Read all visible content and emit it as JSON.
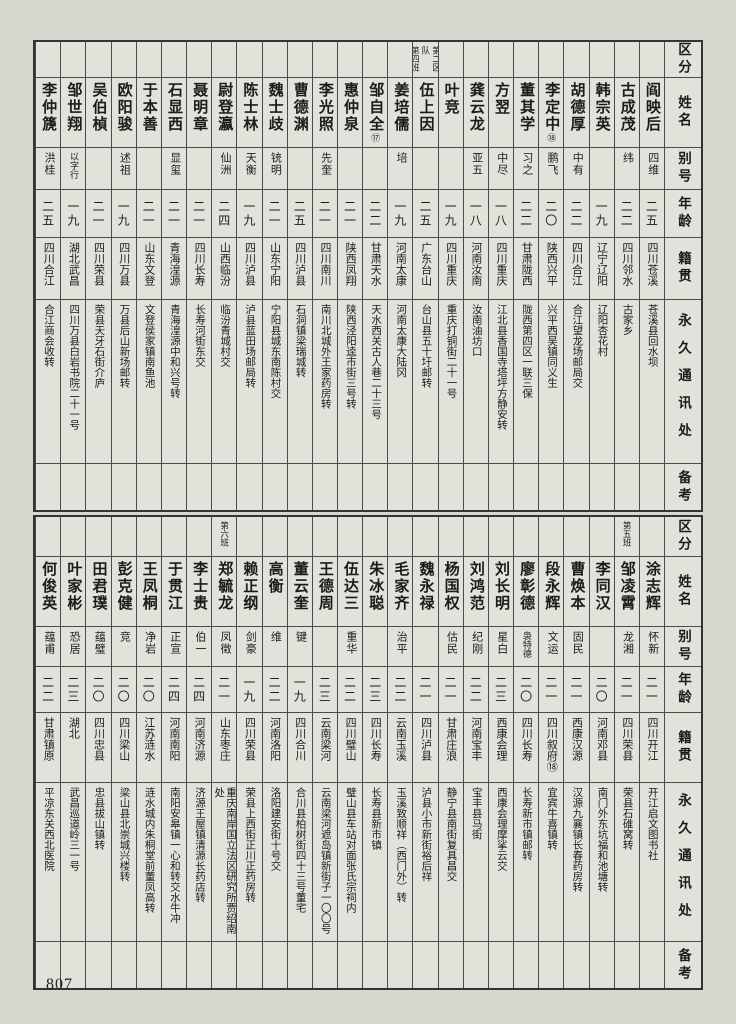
{
  "page": {
    "number": "807"
  },
  "colors": {
    "paper": "#d6d8cf",
    "ink": "#1b1b1b",
    "border": "#4a4a4a"
  },
  "headers": {
    "labels": [
      "区分",
      "姓名",
      "别号",
      "年龄",
      "籍贯",
      "永久通讯处",
      "备考"
    ]
  },
  "tables": [
    {
      "id": "top",
      "people": [
        {
          "name": "阎映后",
          "alias": "四维",
          "age": "二五",
          "native": "四川苍溪",
          "address": "苍溪县回水坝",
          "marker": "",
          "squad": ""
        },
        {
          "name": "古成茂",
          "alias": "纬",
          "age": "二二",
          "native": "四川邻水",
          "address": "古家乡",
          "marker": "",
          "squad": ""
        },
        {
          "name": "韩宗英",
          "alias": "",
          "age": "一九",
          "native": "辽宁辽阳",
          "address": "辽阳杏花村",
          "marker": "",
          "squad": ""
        },
        {
          "name": "胡德厚",
          "alias": "中有",
          "age": "二二",
          "native": "四川合江",
          "address": "合江望龙场邮局交",
          "marker": "",
          "squad": ""
        },
        {
          "name": "李定中",
          "alias": "鹏飞",
          "age": "二〇",
          "native": "陕西兴平",
          "address": "兴平西吴镇同义生",
          "marker": "⑱",
          "squad": ""
        },
        {
          "name": "董其学",
          "alias": "习之",
          "age": "二二",
          "native": "甘肃陇西",
          "address": "陇西第四区一联三保",
          "marker": "",
          "squad": ""
        },
        {
          "name": "方翌",
          "alias": "中尽",
          "age": "一八",
          "native": "四川重庆",
          "address": "江北县香国寺塔坪方静安转",
          "marker": "",
          "squad": ""
        },
        {
          "name": "龚云龙",
          "alias": "亚五",
          "age": "一八",
          "native": "河南汝南",
          "address": "汝南油坊口",
          "marker": "",
          "squad": ""
        },
        {
          "name": "叶竞",
          "alias": "",
          "age": "一九",
          "native": "四川重庆",
          "address": "重庆打铜街二十一号",
          "marker": "",
          "squad": ""
        },
        {
          "name": "伍上因",
          "alias": "",
          "age": "二五",
          "native": "广东台山",
          "address": "台山县五十圩邮转",
          "marker": "",
          "squad": "第二区队\n第四班"
        },
        {
          "name": "姜培儒",
          "alias": "培",
          "age": "一九",
          "native": "河南太康",
          "address": "河南太康大陆冈",
          "marker": "",
          "squad": ""
        },
        {
          "name": "邹自全",
          "alias": "",
          "age": "二二",
          "native": "甘肃天水",
          "address": "天水西关古人巷二十三号",
          "marker": "⑰",
          "squad": ""
        },
        {
          "name": "惠仲泉",
          "alias": "",
          "age": "二一",
          "native": "陕西凤翔",
          "address": "陕西泾阳逵市街三号转",
          "marker": "",
          "squad": ""
        },
        {
          "name": "李光照",
          "alias": "先奎",
          "age": "二一",
          "native": "四川南川",
          "address": "南川北城外王家药房转",
          "marker": "",
          "squad": ""
        },
        {
          "name": "曹德渊",
          "alias": "",
          "age": "二五",
          "native": "四川泸县",
          "address": "石洞镇梁瑞城转",
          "marker": "",
          "squad": ""
        },
        {
          "name": "魏士歧",
          "alias": "铳明",
          "age": "二一",
          "native": "山东宁阳",
          "address": "宁阳县城东南陈村交",
          "marker": "",
          "squad": ""
        },
        {
          "name": "陈士林",
          "alias": "天衡",
          "age": "一九",
          "native": "四川泸县",
          "address": "泸县蓝田场邮局转",
          "marker": "",
          "squad": ""
        },
        {
          "name": "尉登瀛",
          "alias": "仙洲",
          "age": "二四",
          "native": "山西临汾",
          "address": "临汾青城村交",
          "marker": "",
          "squad": ""
        },
        {
          "name": "聂明章",
          "alias": "",
          "age": "二一",
          "native": "四川长寿",
          "address": "长寿河街东交",
          "marker": "",
          "squad": ""
        },
        {
          "name": "石显西",
          "alias": "显玺",
          "age": "二一",
          "native": "青海湟源",
          "address": "青海湟源中和兴号转",
          "marker": "",
          "squad": ""
        },
        {
          "name": "于本善",
          "alias": "",
          "age": "二一",
          "native": "山东文登",
          "address": "文登侯家镇南鱼池",
          "marker": "",
          "squad": ""
        },
        {
          "name": "欧阳骏",
          "alias": "述祖",
          "age": "一九",
          "native": "四川万县",
          "address": "万县后山新场邮转",
          "marker": "",
          "squad": ""
        },
        {
          "name": "吴伯楨",
          "alias": "",
          "age": "二一",
          "native": "四川荣县",
          "address": "荣县天牙石街介庐",
          "marker": "",
          "squad": ""
        },
        {
          "name": "邹世翔",
          "alias": "以字行",
          "age": "一九",
          "native": "湖北武昌",
          "address": "四川万县白岩书院二十一号",
          "marker": "",
          "squad": ""
        },
        {
          "name": "李仲篪",
          "alias": "洪桂",
          "age": "二五",
          "native": "四川合江",
          "address": "合江商会收转",
          "marker": "",
          "squad": ""
        }
      ]
    },
    {
      "id": "bottom",
      "people": [
        {
          "name": "涂志辉",
          "alias": "怀新",
          "age": "二一",
          "native": "四川开江",
          "address": "开江启文图书社",
          "marker": "",
          "squad": ""
        },
        {
          "name": "邹凌霄",
          "alias": "龙湘",
          "age": "二一",
          "native": "四川荣县",
          "address": "荣县石碓窝转",
          "marker": "",
          "squad": "第五班"
        },
        {
          "name": "李同汉",
          "alias": "",
          "age": "二〇",
          "native": "河南邓县",
          "address": "南门外东坑福和池塘转",
          "marker": "",
          "squad": ""
        },
        {
          "name": "曹焕本",
          "alias": "固民",
          "age": "二一",
          "native": "西康汉源",
          "address": "汉源九襄镇长春药房转",
          "marker": "",
          "squad": ""
        },
        {
          "name": "段永辉",
          "alias": "文运",
          "age": "二一",
          "native": "四川叙府⑱",
          "address": "宜宾牛喜镇转",
          "marker": "",
          "squad": ""
        },
        {
          "name": "廖彰德",
          "alias": "袅特德",
          "age": "二〇",
          "native": "四川长寿",
          "address": "长寿新市镇邮转",
          "marker": "",
          "squad": ""
        },
        {
          "name": "刘长明",
          "alias": "星白",
          "age": "二三",
          "native": "西康会理",
          "address": "西康会理摩挲云交",
          "marker": "",
          "squad": ""
        },
        {
          "name": "刘鸿范",
          "alias": "纪刚",
          "age": "二二",
          "native": "河南宝丰",
          "address": "宝丰县马街",
          "marker": "",
          "squad": ""
        },
        {
          "name": "杨国权",
          "alias": "估民",
          "age": "二一",
          "native": "甘肃庄浪",
          "address": "静宁县南街复具昌交",
          "marker": "",
          "squad": ""
        },
        {
          "name": "魏永禄",
          "alias": "",
          "age": "二一",
          "native": "四川泸县",
          "address": "泸县小市新街裕后祥",
          "marker": "",
          "squad": ""
        },
        {
          "name": "毛家齐",
          "alias": "治平",
          "age": "二二",
          "native": "云南玉溪",
          "address": "玉溪致顺祥（西门外）转",
          "marker": "",
          "squad": ""
        },
        {
          "name": "朱冰聪",
          "alias": "",
          "age": "二三",
          "native": "四川长寿",
          "address": "长寿县新市镇",
          "marker": "",
          "squad": ""
        },
        {
          "name": "伍达三",
          "alias": "重华",
          "age": "二二",
          "native": "四川璧山",
          "address": "璧山县车站对面张氏宗祠内",
          "marker": "",
          "squad": ""
        },
        {
          "name": "王德周",
          "alias": "",
          "age": "二三",
          "native": "云南梁河",
          "address": "云南梁河遮岛镇新街子一〇〇号",
          "marker": "",
          "squad": ""
        },
        {
          "name": "董云奎",
          "alias": "键",
          "age": "一九",
          "native": "四川合川",
          "address": "合川县柏树街四十三号董宅",
          "marker": "",
          "squad": ""
        },
        {
          "name": "高衡",
          "alias": "维",
          "age": "二二",
          "native": "河南洛阳",
          "address": "洛阳建安街十号交",
          "marker": "",
          "squad": ""
        },
        {
          "name": "赖正纲",
          "alias": "剑豪",
          "age": "一九",
          "native": "四川荣县",
          "address": "荣县上西街正川正药房转",
          "marker": "",
          "squad": ""
        },
        {
          "name": "郑毓龙",
          "alias": "凤徵",
          "age": "二一",
          "native": "山东枣庄",
          "address": "重庆南岸国立法区研究所贾绍南处",
          "marker": "",
          "squad": "第六班"
        },
        {
          "name": "李士贵",
          "alias": "伯一",
          "age": "二四",
          "native": "河南济源",
          "address": "济源王屋镇清源长药店转",
          "marker": "",
          "squad": ""
        },
        {
          "name": "于贯江",
          "alias": "正宣",
          "age": "二四",
          "native": "河南南阳",
          "address": "南阳安皋镇一心和转交水牛冲",
          "marker": "",
          "squad": ""
        },
        {
          "name": "王凤桐",
          "alias": "净岩",
          "age": "二〇",
          "native": "江苏涟水",
          "address": "涟水城内朱桐堂前董凤高转",
          "marker": "",
          "squad": ""
        },
        {
          "name": "彭克健",
          "alias": "竞",
          "age": "二〇",
          "native": "四川梁山",
          "address": "梁山县北崇城兴楼转",
          "marker": "",
          "squad": ""
        },
        {
          "name": "田君璞",
          "alias": "蕴璧",
          "age": "二〇",
          "native": "四川忠县",
          "address": "忠县拔山镇转",
          "marker": "",
          "squad": ""
        },
        {
          "name": "叶家彬",
          "alias": "恐居",
          "age": "二三",
          "native": "湖北",
          "address": "武昌巡道岭三一号",
          "marker": "",
          "squad": ""
        },
        {
          "name": "何俊英",
          "alias": "蕴甫",
          "age": "二二",
          "native": "甘肃镇原",
          "address": "平凉东关西北医院",
          "marker": "",
          "squad": ""
        }
      ]
    }
  ]
}
